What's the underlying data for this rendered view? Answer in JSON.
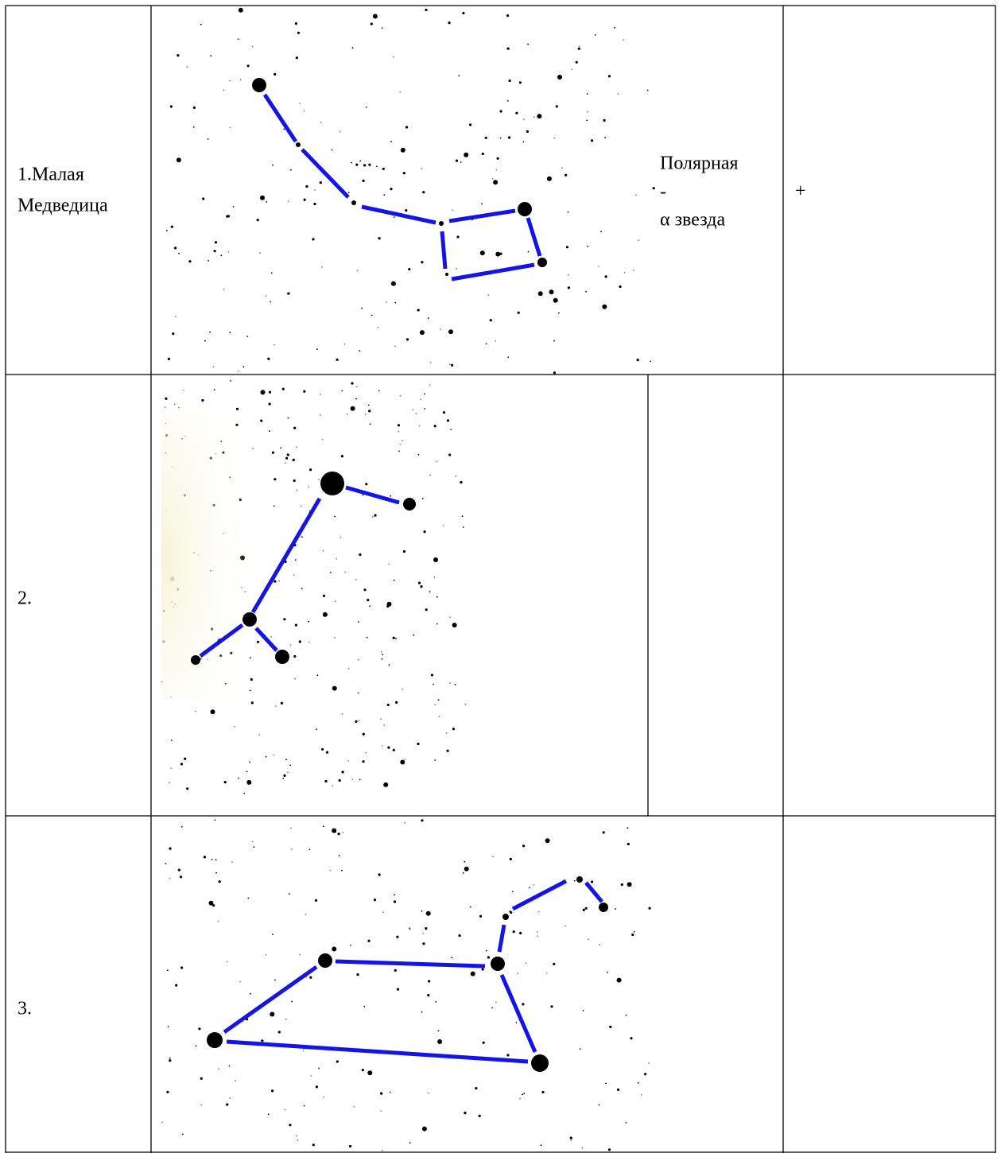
{
  "table": {
    "rows": [
      {
        "label": [
          "1.Малая",
          "Медведица"
        ],
        "star": [
          "Полярная",
          "-",
          "α звезда"
        ],
        "mark": "+"
      },
      {
        "label": [
          "2."
        ]
      },
      {
        "label": [
          "3."
        ]
      }
    ]
  }
}
